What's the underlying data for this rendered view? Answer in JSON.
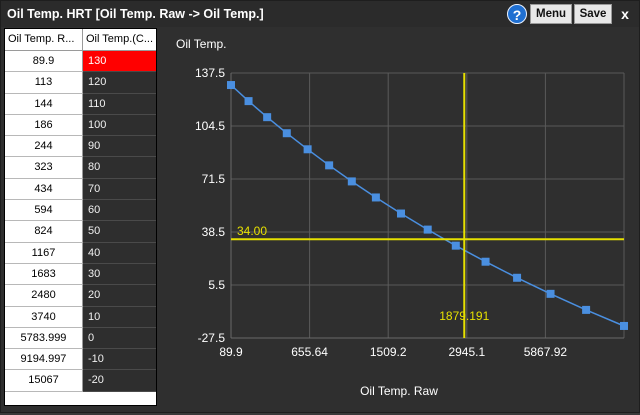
{
  "window": {
    "title": "Oil Temp. HRT [Oil Temp. Raw -> Oil Temp.]",
    "help_label": "?",
    "menu_label": "Menu",
    "save_label": "Save",
    "close_label": "x"
  },
  "table": {
    "columns": [
      "Oil Temp. R...",
      "Oil Temp.(C..."
    ],
    "rows": [
      [
        "89.9",
        "130"
      ],
      [
        "113",
        "120"
      ],
      [
        "144",
        "110"
      ],
      [
        "186",
        "100"
      ],
      [
        "244",
        "90"
      ],
      [
        "323",
        "80"
      ],
      [
        "434",
        "70"
      ],
      [
        "594",
        "60"
      ],
      [
        "824",
        "50"
      ],
      [
        "1167",
        "40"
      ],
      [
        "1683",
        "30"
      ],
      [
        "2480",
        "20"
      ],
      [
        "3740",
        "10"
      ],
      [
        "5783.999",
        "0"
      ],
      [
        "9194.997",
        "-10"
      ],
      [
        "15067",
        "-20"
      ]
    ],
    "selected_row": 0
  },
  "chart_data": {
    "type": "line",
    "ylabel": "Oil Temp.",
    "xlabel": "Oil Temp. Raw",
    "x_ticks": [
      "89.9",
      "655.64",
      "1509.2",
      "2945.1",
      "5867.92"
    ],
    "y_ticks": [
      "137.5",
      "104.5",
      "71.5",
      "38.5",
      "5.5",
      "-27.5"
    ],
    "ylim": [
      -27.5,
      137.5
    ],
    "x_scale": "log",
    "xlim": [
      89.9,
      15067
    ],
    "grid": true,
    "series": [
      {
        "x": [
          89.9,
          113,
          144,
          186,
          244,
          323,
          434,
          594,
          824,
          1167,
          1683,
          2480,
          3740,
          5783.999,
          9194.997,
          15067
        ],
        "y": [
          130,
          120,
          110,
          100,
          90,
          80,
          70,
          60,
          50,
          40,
          30,
          20,
          10,
          0,
          -10,
          -20
        ],
        "color": "#4a8fe0"
      }
    ],
    "cursor": {
      "x_label": "1879.191",
      "y_label": "34.00",
      "x": 1879.191,
      "y": 34.0,
      "color": "#e6e000"
    }
  }
}
